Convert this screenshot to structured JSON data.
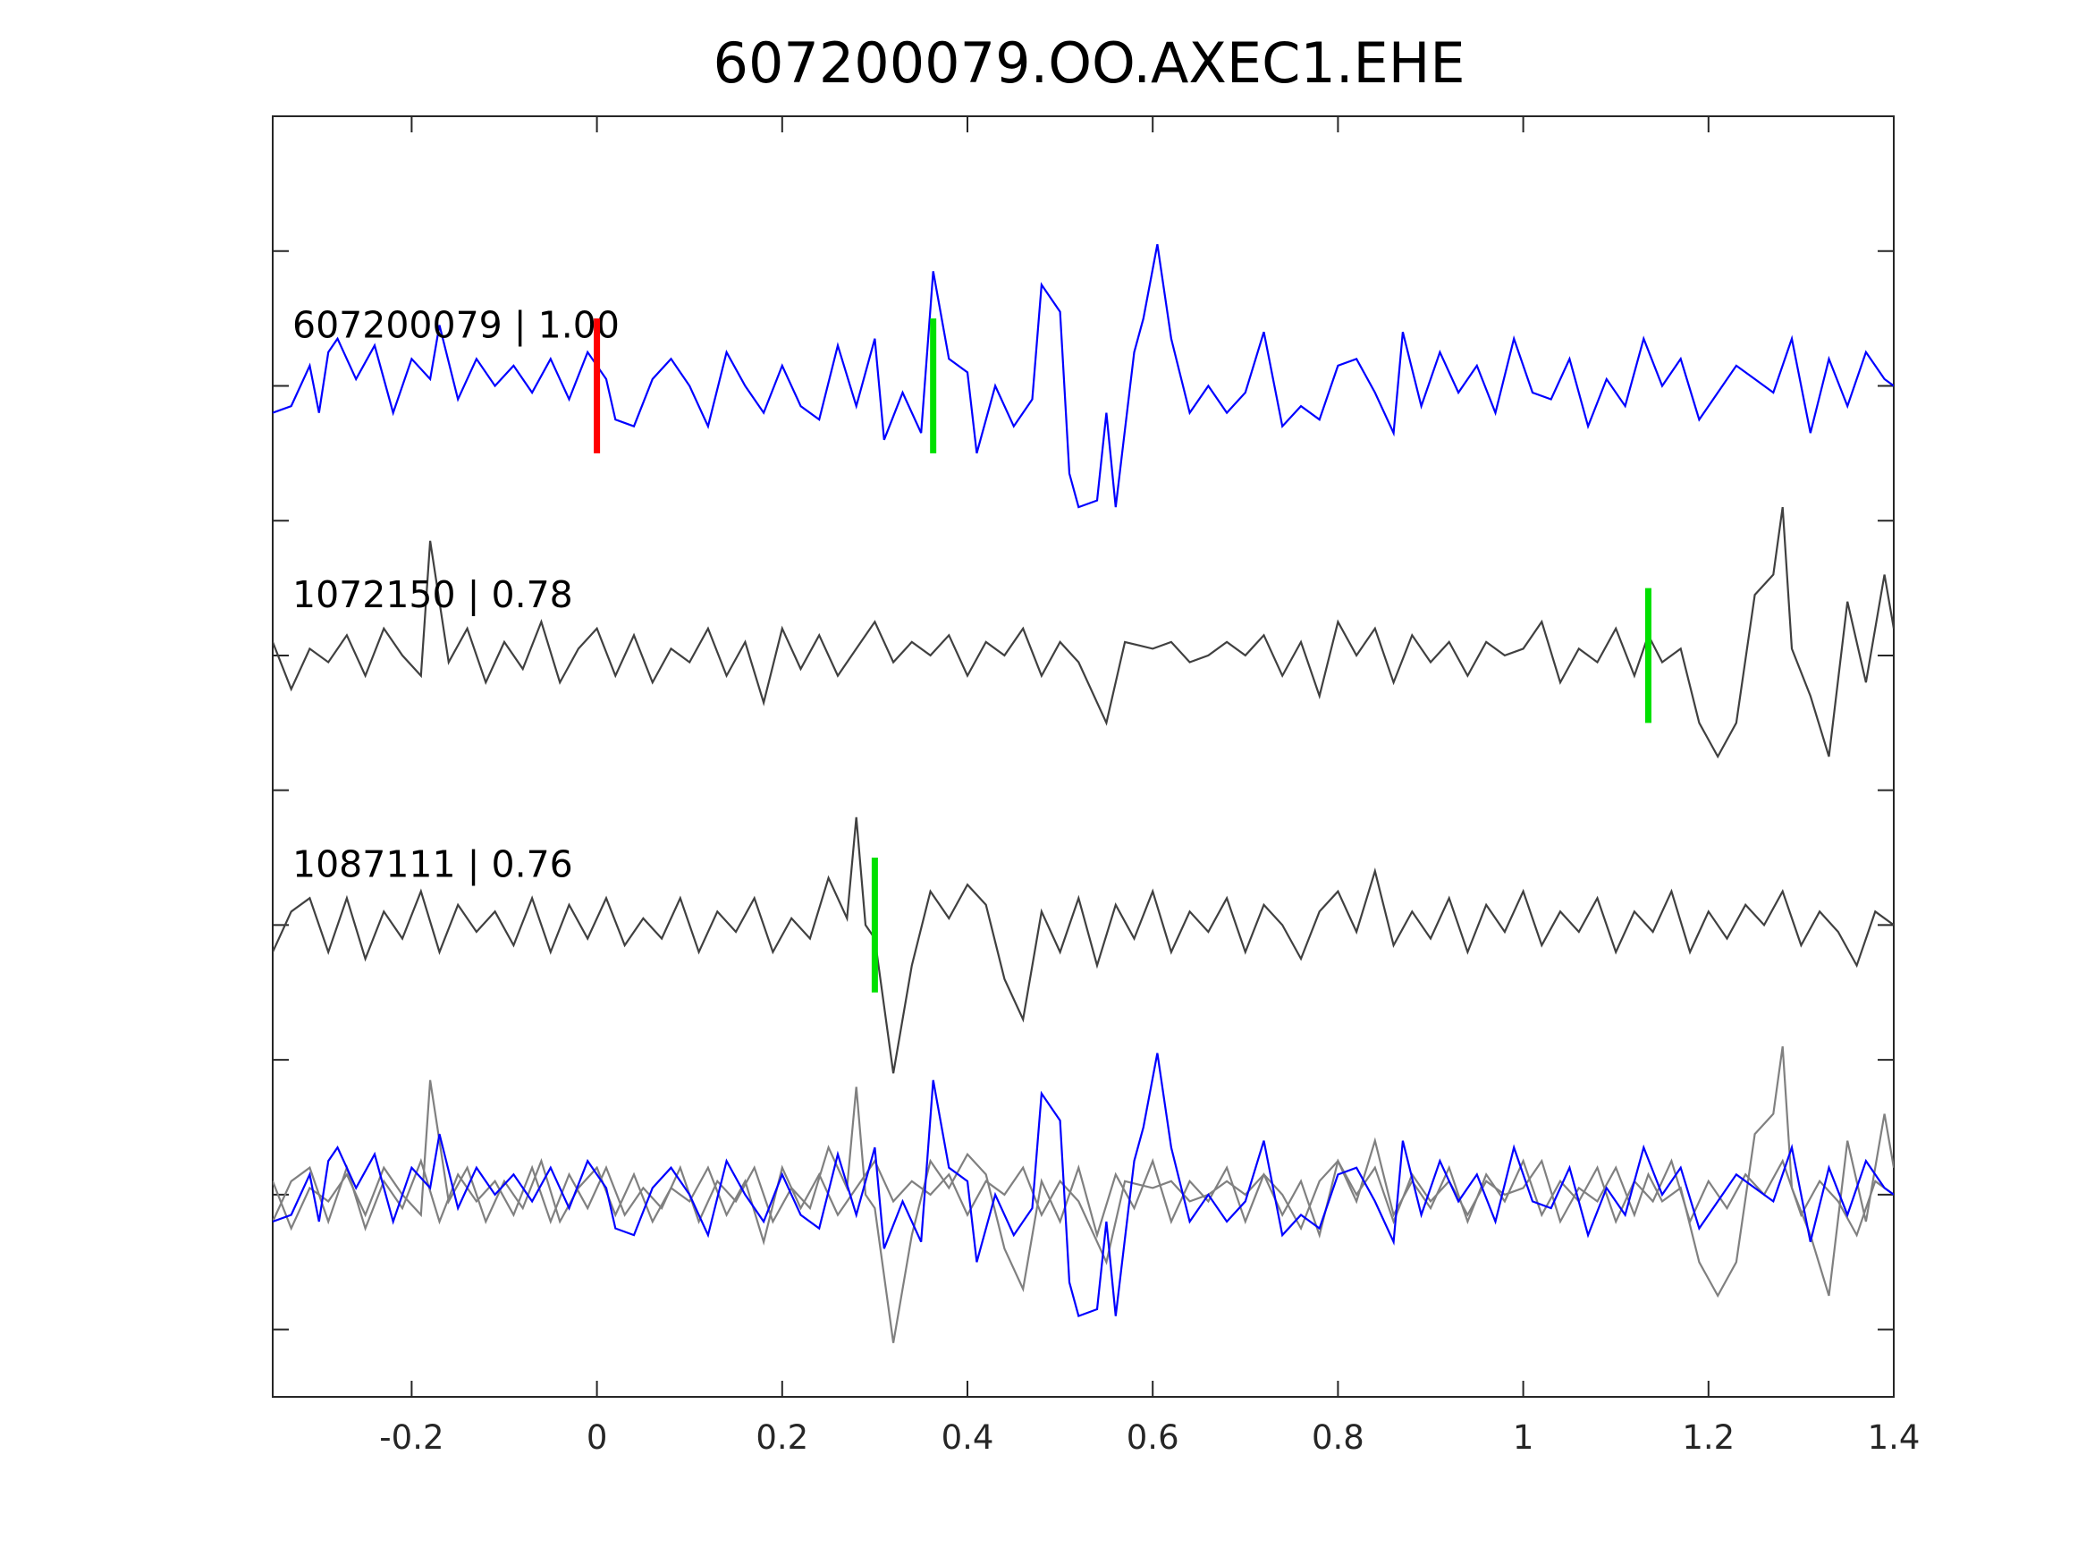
{
  "chart_data": {
    "type": "line",
    "title": "607200079.OO.AXEC1.EHE",
    "xlabel": "",
    "ylabel": "",
    "xlim": [
      -0.35,
      1.4
    ],
    "ylim": [
      0,
      9.5
    ],
    "x_ticks": [
      -0.2,
      0,
      0.2,
      0.4,
      0.6,
      0.8,
      1,
      1.2,
      1.4
    ],
    "x_tick_labels": [
      "-0.2",
      "0",
      "0.2",
      "0.4",
      "0.6",
      "0.8",
      "1",
      "1.2",
      "1.4"
    ],
    "y_ticks": [
      0.5,
      1.5,
      2.5,
      3.5,
      4.5,
      5.5,
      6.5,
      7.5,
      8.5
    ],
    "y_tick_labels": [],
    "grid": false,
    "series": [
      {
        "label": "607200079 | 1.00",
        "color": "#0000ff",
        "baseline": 7.5,
        "marks": [
          {
            "x": 0.0,
            "color": "#ff0000"
          },
          {
            "x": 0.363,
            "color": "#00e000"
          }
        ],
        "points": [
          [
            -0.35,
            7.3
          ],
          [
            -0.33,
            7.35
          ],
          [
            -0.31,
            7.65
          ],
          [
            -0.3,
            7.3
          ],
          [
            -0.29,
            7.75
          ],
          [
            -0.28,
            7.85
          ],
          [
            -0.26,
            7.55
          ],
          [
            -0.24,
            7.8
          ],
          [
            -0.22,
            7.3
          ],
          [
            -0.2,
            7.7
          ],
          [
            -0.18,
            7.55
          ],
          [
            -0.17,
            7.95
          ],
          [
            -0.15,
            7.4
          ],
          [
            -0.13,
            7.7
          ],
          [
            -0.11,
            7.5
          ],
          [
            -0.09,
            7.65
          ],
          [
            -0.07,
            7.45
          ],
          [
            -0.05,
            7.7
          ],
          [
            -0.03,
            7.4
          ],
          [
            -0.01,
            7.75
          ],
          [
            0.01,
            7.55
          ],
          [
            0.02,
            7.25
          ],
          [
            0.04,
            7.2
          ],
          [
            0.06,
            7.55
          ],
          [
            0.08,
            7.7
          ],
          [
            0.1,
            7.5
          ],
          [
            0.12,
            7.2
          ],
          [
            0.14,
            7.75
          ],
          [
            0.16,
            7.5
          ],
          [
            0.18,
            7.3
          ],
          [
            0.2,
            7.65
          ],
          [
            0.22,
            7.35
          ],
          [
            0.24,
            7.25
          ],
          [
            0.26,
            7.8
          ],
          [
            0.28,
            7.35
          ],
          [
            0.3,
            7.85
          ],
          [
            0.31,
            7.1
          ],
          [
            0.33,
            7.45
          ],
          [
            0.35,
            7.15
          ],
          [
            0.363,
            8.35
          ],
          [
            0.38,
            7.7
          ],
          [
            0.4,
            7.6
          ],
          [
            0.41,
            7.0
          ],
          [
            0.43,
            7.5
          ],
          [
            0.45,
            7.2
          ],
          [
            0.47,
            7.4
          ],
          [
            0.48,
            8.25
          ],
          [
            0.5,
            8.05
          ],
          [
            0.51,
            6.85
          ],
          [
            0.52,
            6.6
          ],
          [
            0.54,
            6.65
          ],
          [
            0.55,
            7.3
          ],
          [
            0.56,
            6.6
          ],
          [
            0.58,
            7.75
          ],
          [
            0.59,
            8.0
          ],
          [
            0.605,
            8.55
          ],
          [
            0.62,
            7.85
          ],
          [
            0.64,
            7.3
          ],
          [
            0.66,
            7.5
          ],
          [
            0.68,
            7.3
          ],
          [
            0.7,
            7.45
          ],
          [
            0.72,
            7.9
          ],
          [
            0.74,
            7.2
          ],
          [
            0.76,
            7.35
          ],
          [
            0.78,
            7.25
          ],
          [
            0.8,
            7.65
          ],
          [
            0.82,
            7.7
          ],
          [
            0.84,
            7.45
          ],
          [
            0.86,
            7.15
          ],
          [
            0.87,
            7.9
          ],
          [
            0.89,
            7.35
          ],
          [
            0.91,
            7.75
          ],
          [
            0.93,
            7.45
          ],
          [
            0.95,
            7.65
          ],
          [
            0.97,
            7.3
          ],
          [
            0.99,
            7.85
          ],
          [
            1.01,
            7.45
          ],
          [
            1.03,
            7.4
          ],
          [
            1.05,
            7.7
          ],
          [
            1.07,
            7.2
          ],
          [
            1.09,
            7.55
          ],
          [
            1.11,
            7.35
          ],
          [
            1.13,
            7.85
          ],
          [
            1.15,
            7.5
          ],
          [
            1.17,
            7.7
          ],
          [
            1.19,
            7.25
          ],
          [
            1.21,
            7.45
          ],
          [
            1.23,
            7.65
          ],
          [
            1.25,
            7.55
          ],
          [
            1.27,
            7.45
          ],
          [
            1.29,
            7.85
          ],
          [
            1.31,
            7.15
          ],
          [
            1.33,
            7.7
          ],
          [
            1.35,
            7.35
          ],
          [
            1.37,
            7.75
          ],
          [
            1.39,
            7.55
          ],
          [
            1.4,
            7.5
          ]
        ]
      },
      {
        "label": "1072150 | 0.78",
        "color": "#404040",
        "baseline": 5.5,
        "marks": [
          {
            "x": 1.135,
            "color": "#00e000"
          }
        ],
        "points": [
          [
            -0.35,
            5.6
          ],
          [
            -0.33,
            5.25
          ],
          [
            -0.31,
            5.55
          ],
          [
            -0.29,
            5.45
          ],
          [
            -0.27,
            5.65
          ],
          [
            -0.25,
            5.35
          ],
          [
            -0.23,
            5.7
          ],
          [
            -0.21,
            5.5
          ],
          [
            -0.19,
            5.35
          ],
          [
            -0.18,
            6.35
          ],
          [
            -0.16,
            5.45
          ],
          [
            -0.14,
            5.7
          ],
          [
            -0.12,
            5.3
          ],
          [
            -0.1,
            5.6
          ],
          [
            -0.08,
            5.4
          ],
          [
            -0.06,
            5.75
          ],
          [
            -0.04,
            5.3
          ],
          [
            -0.02,
            5.55
          ],
          [
            0.0,
            5.7
          ],
          [
            0.02,
            5.35
          ],
          [
            0.04,
            5.65
          ],
          [
            0.06,
            5.3
          ],
          [
            0.08,
            5.55
          ],
          [
            0.1,
            5.45
          ],
          [
            0.12,
            5.7
          ],
          [
            0.14,
            5.35
          ],
          [
            0.16,
            5.6
          ],
          [
            0.18,
            5.15
          ],
          [
            0.2,
            5.7
          ],
          [
            0.22,
            5.4
          ],
          [
            0.24,
            5.65
          ],
          [
            0.26,
            5.35
          ],
          [
            0.28,
            5.55
          ],
          [
            0.3,
            5.75
          ],
          [
            0.32,
            5.45
          ],
          [
            0.34,
            5.6
          ],
          [
            0.36,
            5.5
          ],
          [
            0.38,
            5.65
          ],
          [
            0.4,
            5.35
          ],
          [
            0.42,
            5.6
          ],
          [
            0.44,
            5.5
          ],
          [
            0.46,
            5.7
          ],
          [
            0.48,
            5.35
          ],
          [
            0.5,
            5.6
          ],
          [
            0.52,
            5.45
          ],
          [
            0.55,
            5.0
          ],
          [
            0.57,
            5.6
          ],
          [
            0.6,
            5.55
          ],
          [
            0.62,
            5.6
          ],
          [
            0.64,
            5.45
          ],
          [
            0.66,
            5.5
          ],
          [
            0.68,
            5.6
          ],
          [
            0.7,
            5.5
          ],
          [
            0.72,
            5.65
          ],
          [
            0.74,
            5.35
          ],
          [
            0.76,
            5.6
          ],
          [
            0.78,
            5.2
          ],
          [
            0.8,
            5.75
          ],
          [
            0.82,
            5.5
          ],
          [
            0.84,
            5.7
          ],
          [
            0.86,
            5.3
          ],
          [
            0.88,
            5.65
          ],
          [
            0.9,
            5.45
          ],
          [
            0.92,
            5.6
          ],
          [
            0.94,
            5.35
          ],
          [
            0.96,
            5.6
          ],
          [
            0.98,
            5.5
          ],
          [
            1.0,
            5.55
          ],
          [
            1.02,
            5.75
          ],
          [
            1.04,
            5.3
          ],
          [
            1.06,
            5.55
          ],
          [
            1.08,
            5.45
          ],
          [
            1.1,
            5.7
          ],
          [
            1.12,
            5.35
          ],
          [
            1.135,
            5.65
          ],
          [
            1.15,
            5.45
          ],
          [
            1.17,
            5.55
          ],
          [
            1.19,
            5.0
          ],
          [
            1.21,
            4.75
          ],
          [
            1.23,
            5.0
          ],
          [
            1.25,
            5.95
          ],
          [
            1.27,
            6.1
          ],
          [
            1.28,
            6.6
          ],
          [
            1.29,
            5.55
          ],
          [
            1.31,
            5.2
          ],
          [
            1.33,
            4.75
          ],
          [
            1.35,
            5.9
          ],
          [
            1.37,
            5.3
          ],
          [
            1.39,
            6.1
          ],
          [
            1.4,
            5.7
          ]
        ]
      },
      {
        "label": "1087111 | 0.76",
        "color": "#404040",
        "baseline": 3.5,
        "marks": [
          {
            "x": 0.3,
            "color": "#00e000"
          }
        ],
        "points": [
          [
            -0.35,
            3.3
          ],
          [
            -0.33,
            3.6
          ],
          [
            -0.31,
            3.7
          ],
          [
            -0.29,
            3.3
          ],
          [
            -0.27,
            3.7
          ],
          [
            -0.25,
            3.25
          ],
          [
            -0.23,
            3.6
          ],
          [
            -0.21,
            3.4
          ],
          [
            -0.19,
            3.75
          ],
          [
            -0.17,
            3.3
          ],
          [
            -0.15,
            3.65
          ],
          [
            -0.13,
            3.45
          ],
          [
            -0.11,
            3.6
          ],
          [
            -0.09,
            3.35
          ],
          [
            -0.07,
            3.7
          ],
          [
            -0.05,
            3.3
          ],
          [
            -0.03,
            3.65
          ],
          [
            -0.01,
            3.4
          ],
          [
            0.01,
            3.7
          ],
          [
            0.03,
            3.35
          ],
          [
            0.05,
            3.55
          ],
          [
            0.07,
            3.4
          ],
          [
            0.09,
            3.7
          ],
          [
            0.11,
            3.3
          ],
          [
            0.13,
            3.6
          ],
          [
            0.15,
            3.45
          ],
          [
            0.17,
            3.7
          ],
          [
            0.19,
            3.3
          ],
          [
            0.21,
            3.55
          ],
          [
            0.23,
            3.4
          ],
          [
            0.25,
            3.85
          ],
          [
            0.27,
            3.55
          ],
          [
            0.28,
            4.3
          ],
          [
            0.29,
            3.5
          ],
          [
            0.3,
            3.4
          ],
          [
            0.32,
            2.4
          ],
          [
            0.34,
            3.2
          ],
          [
            0.36,
            3.75
          ],
          [
            0.38,
            3.55
          ],
          [
            0.4,
            3.8
          ],
          [
            0.42,
            3.65
          ],
          [
            0.44,
            3.1
          ],
          [
            0.46,
            2.8
          ],
          [
            0.48,
            3.6
          ],
          [
            0.5,
            3.3
          ],
          [
            0.52,
            3.7
          ],
          [
            0.54,
            3.2
          ],
          [
            0.56,
            3.65
          ],
          [
            0.58,
            3.4
          ],
          [
            0.6,
            3.75
          ],
          [
            0.62,
            3.3
          ],
          [
            0.64,
            3.6
          ],
          [
            0.66,
            3.45
          ],
          [
            0.68,
            3.7
          ],
          [
            0.7,
            3.3
          ],
          [
            0.72,
            3.65
          ],
          [
            0.74,
            3.5
          ],
          [
            0.76,
            3.25
          ],
          [
            0.78,
            3.6
          ],
          [
            0.8,
            3.75
          ],
          [
            0.82,
            3.45
          ],
          [
            0.84,
            3.9
          ],
          [
            0.86,
            3.35
          ],
          [
            0.88,
            3.6
          ],
          [
            0.9,
            3.4
          ],
          [
            0.92,
            3.7
          ],
          [
            0.94,
            3.3
          ],
          [
            0.96,
            3.65
          ],
          [
            0.98,
            3.45
          ],
          [
            1.0,
            3.75
          ],
          [
            1.02,
            3.35
          ],
          [
            1.04,
            3.6
          ],
          [
            1.06,
            3.45
          ],
          [
            1.08,
            3.7
          ],
          [
            1.1,
            3.3
          ],
          [
            1.12,
            3.6
          ],
          [
            1.14,
            3.45
          ],
          [
            1.16,
            3.75
          ],
          [
            1.18,
            3.3
          ],
          [
            1.2,
            3.6
          ],
          [
            1.22,
            3.4
          ],
          [
            1.24,
            3.65
          ],
          [
            1.26,
            3.5
          ],
          [
            1.28,
            3.75
          ],
          [
            1.3,
            3.35
          ],
          [
            1.32,
            3.6
          ],
          [
            1.34,
            3.45
          ],
          [
            1.36,
            3.2
          ],
          [
            1.38,
            3.6
          ],
          [
            1.4,
            3.5
          ]
        ]
      }
    ],
    "overlay": {
      "baseline": 1.5,
      "colors": [
        "#808080",
        "#808080",
        "#0000ff"
      ]
    }
  }
}
